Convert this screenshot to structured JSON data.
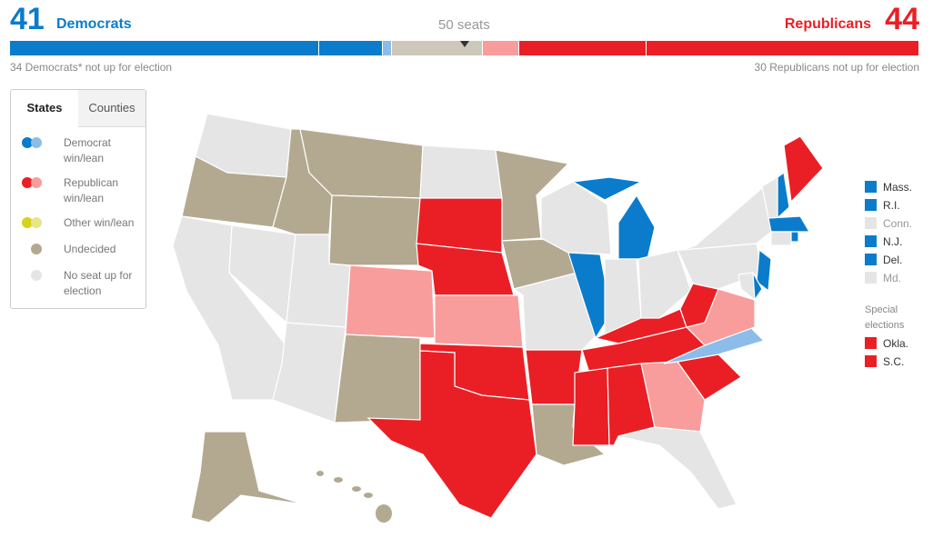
{
  "header": {
    "dem_count": "41",
    "dem_label": "Democrats",
    "majority": "50 seats",
    "rep_label": "Republicans",
    "rep_count": "44",
    "dem_note": "34 Democrats* not up for election",
    "rep_note": "30 Republicans not up for election"
  },
  "seat_bar": [
    {
      "value": 34,
      "color": "#0a7ccb"
    },
    {
      "value": 7,
      "color": "#0a7ccb"
    },
    {
      "value": 1,
      "color": "#8cbcea"
    },
    {
      "value": 10,
      "color": "#cdc8ba"
    },
    {
      "value": 4,
      "color": "#f99c9c"
    },
    {
      "value": 14,
      "color": "#ea1f25"
    },
    {
      "value": 30,
      "color": "#ea1f25"
    }
  ],
  "tabs": [
    "States",
    "Counties"
  ],
  "legend": [
    "Democrat win/lean",
    "Republican win/lean",
    "Other win/lean",
    "Undecided",
    "No seat up for election"
  ],
  "small_states": [
    "Mass.",
    "R.I.",
    "Conn.",
    "N.J.",
    "Del.",
    "Md."
  ],
  "special": {
    "title": "Special elections",
    "states": [
      "Okla.",
      "S.C."
    ]
  }
}
